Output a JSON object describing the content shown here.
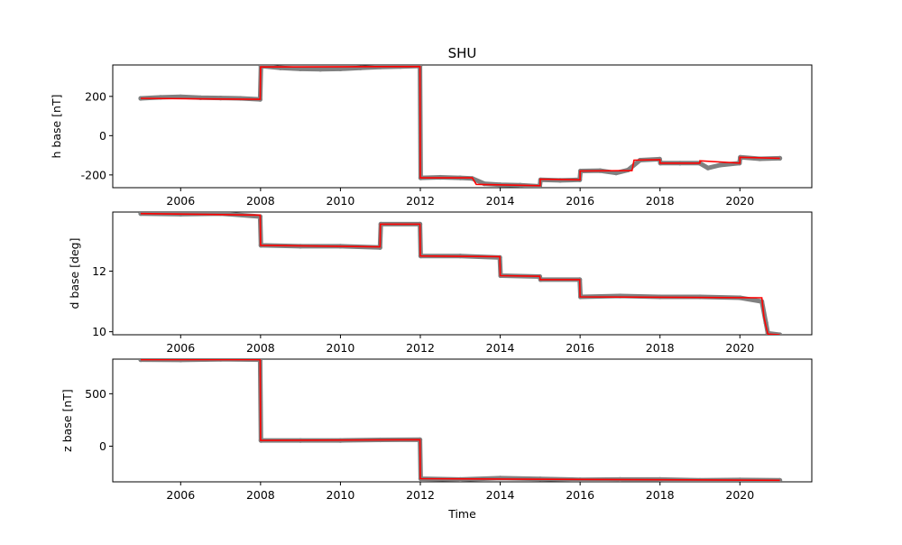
{
  "title": "SHU",
  "xlabel": "Time",
  "x_ticks": [
    "2006",
    "2008",
    "2010",
    "2012",
    "2014",
    "2016",
    "2018",
    "2020"
  ],
  "colors": {
    "points": "#808080",
    "line": "#ff0000"
  },
  "chart_data": [
    {
      "type": "line",
      "ylabel": "h base [nT]",
      "xlim": [
        2004.3,
        2021.8
      ],
      "ylim": [
        -265,
        360
      ],
      "y_ticks": [
        200,
        0,
        -200
      ],
      "series": [
        {
          "role": "scatter",
          "x": [
            2005.0,
            2005.5,
            2006.0,
            2006.5,
            2007.0,
            2007.5,
            2007.99,
            2008.01,
            2008.5,
            2009.0,
            2009.5,
            2010.0,
            2010.5,
            2011.0,
            2011.5,
            2011.99,
            2012.01,
            2012.5,
            2013.0,
            2013.3,
            2013.6,
            2014.0,
            2014.5,
            2014.99,
            2015.01,
            2015.5,
            2015.99,
            2016.01,
            2016.5,
            2016.9,
            2017.2,
            2017.5,
            2017.99,
            2018.01,
            2018.5,
            2018.99,
            2019.2,
            2019.5,
            2019.99,
            2020.01,
            2020.5,
            2021.0
          ],
          "y": [
            190,
            195,
            198,
            193,
            192,
            190,
            185,
            355,
            345,
            340,
            338,
            340,
            345,
            350,
            352,
            355,
            -215,
            -212,
            -215,
            -218,
            -245,
            -250,
            -252,
            -258,
            -225,
            -228,
            -225,
            -180,
            -178,
            -190,
            -175,
            -125,
            -120,
            -140,
            -140,
            -140,
            -165,
            -150,
            -140,
            -110,
            -118,
            -115
          ]
        },
        {
          "role": "step",
          "x": [
            2005.0,
            2007.99,
            2008.0,
            2011.99,
            2012.0,
            2013.3,
            2013.4,
            2015.0,
            2015.0,
            2016.0,
            2016.0,
            2017.3,
            2017.35,
            2018.0,
            2018.0,
            2019.0,
            2019.0,
            2020.0,
            2020.0,
            2021.0
          ],
          "y": [
            190,
            185,
            350,
            352,
            -215,
            -215,
            -248,
            -255,
            -222,
            -225,
            -180,
            -178,
            -125,
            -122,
            -140,
            -140,
            -128,
            -140,
            -110,
            -115
          ]
        }
      ]
    },
    {
      "type": "line",
      "ylabel": "d base [deg]",
      "xlim": [
        2004.3,
        2021.8
      ],
      "ylim": [
        9.9,
        13.95
      ],
      "y_ticks": [
        12,
        10
      ],
      "series": [
        {
          "role": "scatter",
          "x": [
            2005.0,
            2006.0,
            2007.0,
            2007.99,
            2008.01,
            2009.0,
            2010.0,
            2010.99,
            2011.01,
            2011.99,
            2012.01,
            2013.0,
            2013.99,
            2014.01,
            2014.99,
            2015.01,
            2015.99,
            2016.01,
            2017.0,
            2018.0,
            2019.0,
            2020.0,
            2020.55,
            2020.65,
            2020.7,
            2021.0
          ],
          "y": [
            13.9,
            13.88,
            13.9,
            13.8,
            12.85,
            12.82,
            12.82,
            12.78,
            13.55,
            13.55,
            12.5,
            12.5,
            12.45,
            11.85,
            11.82,
            11.72,
            11.72,
            11.15,
            11.18,
            11.15,
            11.15,
            11.12,
            11.0,
            10.3,
            9.95,
            9.9
          ]
        },
        {
          "role": "step",
          "x": [
            2005.0,
            2007.99,
            2008.0,
            2010.99,
            2011.0,
            2011.99,
            2012.0,
            2013.99,
            2014.0,
            2014.99,
            2015.0,
            2015.99,
            2016.0,
            2020.55,
            2020.6,
            2020.65,
            2020.7,
            2021.0
          ],
          "y": [
            13.9,
            13.85,
            12.85,
            12.8,
            13.55,
            13.55,
            12.5,
            12.48,
            11.85,
            11.83,
            11.72,
            11.72,
            11.15,
            11.12,
            10.5,
            10.2,
            9.92,
            9.9
          ]
        }
      ]
    },
    {
      "type": "line",
      "ylabel": "z base [nT]",
      "xlim": [
        2004.3,
        2021.8
      ],
      "ylim": [
        -340,
        830
      ],
      "y_ticks": [
        500,
        0
      ],
      "series": [
        {
          "role": "scatter",
          "x": [
            2005.0,
            2006.0,
            2007.0,
            2007.99,
            2008.01,
            2009.0,
            2010.0,
            2011.0,
            2011.99,
            2012.01,
            2013.0,
            2014.0,
            2015.0,
            2016.0,
            2017.0,
            2018.0,
            2019.0,
            2020.0,
            2021.0
          ],
          "y": [
            825,
            822,
            828,
            825,
            55,
            55,
            55,
            60,
            62,
            -310,
            -318,
            -305,
            -312,
            -320,
            -318,
            -318,
            -325,
            -322,
            -325
          ]
        },
        {
          "role": "step",
          "x": [
            2005.0,
            2007.99,
            2008.0,
            2011.99,
            2012.0,
            2021.0
          ],
          "y": [
            825,
            825,
            55,
            62,
            -310,
            -325
          ]
        }
      ]
    }
  ]
}
